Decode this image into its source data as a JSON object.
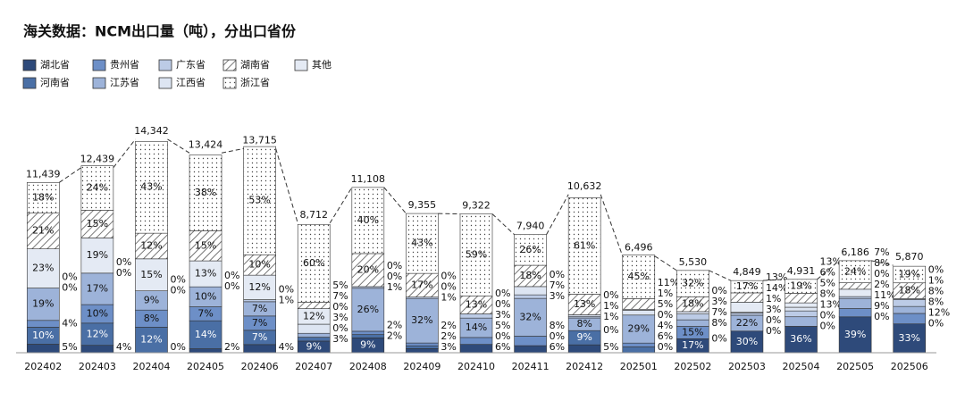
{
  "chart_data": {
    "type": "stacked-bar",
    "title": "海关数据：NCM出口量（吨），分出口省份",
    "categories": [
      "202402",
      "202403",
      "202404",
      "202405",
      "202406",
      "202407",
      "202408",
      "202409",
      "202410",
      "202411",
      "202412",
      "202501",
      "202502",
      "202503",
      "202504",
      "202505",
      "202506"
    ],
    "ylim": [
      0,
      15000
    ],
    "totals": {
      "values": [
        11439,
        12439,
        14342,
        13424,
        13715,
        8712,
        11108,
        9355,
        9322,
        7940,
        10632,
        6496,
        5530,
        4849,
        4931,
        6186,
        5870
      ],
      "value_labels": [
        "11,439",
        "12,439",
        "14,342",
        "13,424",
        "13,715",
        "8,712",
        "11,108",
        "9,355",
        "9,322",
        "7,940",
        "10,632",
        "6,496",
        "5,530",
        "4,849",
        "4,931",
        "6,186",
        "5,870"
      ]
    },
    "series": [
      {
        "name": "湖北省",
        "color": "#2e4a7a",
        "values": [
          5,
          4,
          0,
          2,
          4,
          9,
          9,
          3,
          6,
          6,
          5,
          0,
          17,
          30,
          36,
          39,
          33
        ],
        "value_labels": [
          "5%",
          "4%",
          "0%",
          "2%",
          "4%",
          "9%",
          "9%",
          "3%",
          "6%",
          "6%",
          "5%",
          "0%",
          "17%",
          "30%",
          "36%",
          "39%",
          "33%"
        ]
      },
      {
        "name": "河南省",
        "color": "#4a6fa5",
        "values": [
          10,
          12,
          12,
          14,
          7,
          3,
          2,
          2,
          0,
          0,
          9,
          6,
          0,
          0,
          0,
          0,
          0
        ],
        "value_labels": [
          "10%",
          "12%",
          "12%",
          "14%",
          "7%",
          "3%",
          "2%",
          "2%",
          "0%",
          "0%",
          "9%",
          "6%",
          "0%",
          "0%",
          "0%",
          "0%",
          "0%"
        ]
      },
      {
        "name": "贵州省",
        "color": "#6d8fc7",
        "values": [
          4,
          10,
          8,
          7,
          7,
          0,
          2,
          2,
          5,
          8,
          0,
          4,
          15,
          0,
          0,
          9,
          12
        ],
        "value_labels": [
          "4%",
          "10%",
          "8%",
          "7%",
          "7%",
          "0%",
          "2%",
          "2%",
          "5%",
          "8%",
          "0%",
          "4%",
          "15%",
          "0%",
          "0%",
          "9%",
          "12%"
        ]
      },
      {
        "name": "江苏省",
        "color": "#9db3d9",
        "values": [
          19,
          17,
          9,
          10,
          7,
          3,
          26,
          32,
          14,
          32,
          8,
          29,
          8,
          22,
          13,
          11,
          8
        ],
        "value_labels": [
          "19%",
          "17%",
          "9%",
          "10%",
          "7%",
          "3%",
          "26%",
          "32%",
          "14%",
          "32%",
          "8%",
          "29%",
          "8%",
          "22%",
          "13%",
          "11%",
          "8%"
        ]
      },
      {
        "name": "广东省",
        "color": "#bccbe6",
        "values": [
          0,
          0,
          0,
          0,
          1,
          0,
          1,
          1,
          3,
          3,
          1,
          0,
          7,
          3,
          8,
          2,
          8
        ],
        "value_labels": [
          "0%",
          "0%",
          "0%",
          "0%",
          "1%",
          "0%",
          "1%",
          "1%",
          "3%",
          "3%",
          "1%",
          "0%",
          "7%",
          "3%",
          "8%",
          "2%",
          "8%"
        ]
      },
      {
        "name": "江西省",
        "color": "#dde5f2",
        "values": [
          0,
          0,
          0,
          0,
          0,
          7,
          0,
          0,
          0,
          7,
          1,
          5,
          3,
          1,
          5,
          0,
          1
        ],
        "value_labels": [
          "0%",
          "0%",
          "0%",
          "0%",
          "0%",
          "7%",
          "0%",
          "0%",
          "0%",
          "7%",
          "1%",
          "5%",
          "3%",
          "1%",
          "5%",
          "0%",
          "1%"
        ]
      },
      {
        "name": "其他",
        "color": "#e4eaf4",
        "values": [
          23,
          19,
          15,
          13,
          12,
          12,
          0,
          0,
          0,
          0,
          0,
          1,
          0,
          14,
          6,
          8,
          0
        ],
        "value_labels": [
          "23%",
          "19%",
          "15%",
          "13%",
          "12%",
          "12%",
          "0%",
          "0%",
          "0%",
          "0%",
          "0%",
          "1%",
          "0%",
          "14%",
          "6%",
          "8%",
          "0%"
        ]
      },
      {
        "name": "湖南省",
        "color": "#555555",
        "pattern": "hatch",
        "values": [
          21,
          15,
          12,
          15,
          10,
          5,
          20,
          17,
          13,
          18,
          13,
          11,
          18,
          13,
          13,
          7,
          18
        ],
        "value_labels": [
          "21%",
          "15%",
          "12%",
          "15%",
          "10%",
          "5%",
          "20%",
          "17%",
          "13%",
          "18%",
          "13%",
          "11%",
          "18%",
          "13%",
          "13%",
          "7%",
          "18%"
        ]
      },
      {
        "name": "浙江省",
        "color": "#555555",
        "pattern": "dots",
        "values": [
          18,
          24,
          43,
          38,
          53,
          60,
          40,
          43,
          59,
          26,
          61,
          45,
          32,
          17,
          19,
          24,
          19
        ],
        "value_labels": [
          "18%",
          "24%",
          "43%",
          "38%",
          "53%",
          "60%",
          "40%",
          "43%",
          "59%",
          "26%",
          "61%",
          "45%",
          "32%",
          "17%",
          "19%",
          "24%",
          "19%"
        ]
      }
    ]
  }
}
